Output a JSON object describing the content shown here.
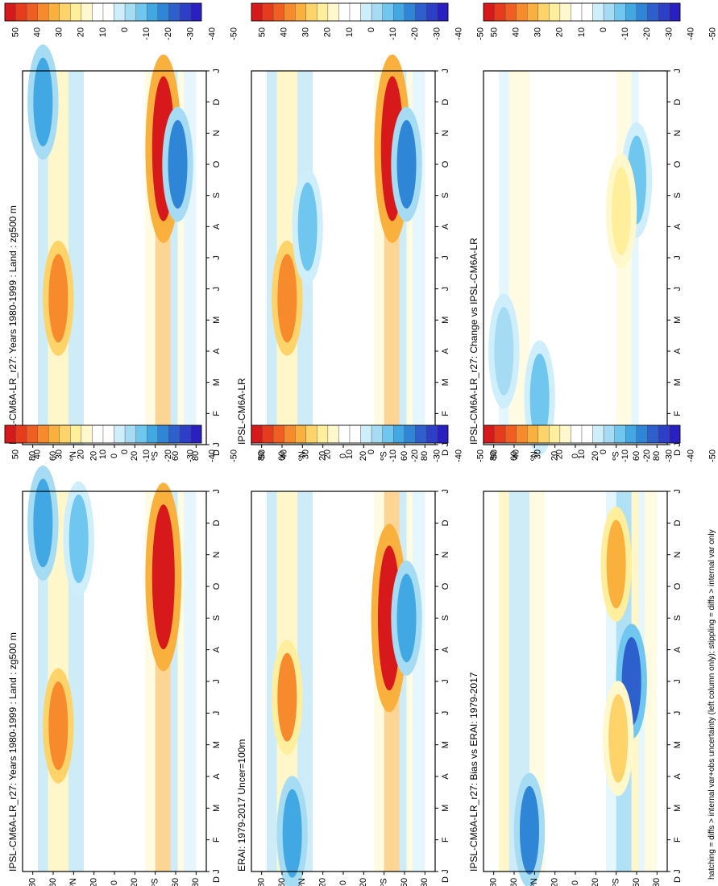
{
  "footnote": "hatching = diffs > internal var+obs uncertainty (left column only); stippling = diffs > internal var only",
  "colorbar": {
    "labels": [
      "50",
      "40",
      "30",
      "20",
      "10",
      "0",
      "-10",
      "-20",
      "-30",
      "-40",
      "-50"
    ],
    "colors": [
      "#d7191c",
      "#e63b1d",
      "#f05e22",
      "#f68a2c",
      "#fab03c",
      "#fdd36a",
      "#ffee9c",
      "#fff8cc",
      "#ffffff",
      "#ffffff",
      "#cfeefb",
      "#a6dcf3",
      "#6fc6ee",
      "#42a8e3",
      "#2f86d6",
      "#2d5fcd",
      "#2d3fc7",
      "#2a20c2"
    ]
  },
  "axis_labels": {
    "months": [
      "J",
      "F",
      "M",
      "A",
      "M",
      "J",
      "J",
      "A",
      "S",
      "O",
      "N",
      "D",
      "J"
    ],
    "lat": [
      "80",
      "60",
      "ºN",
      "20",
      "0",
      "20",
      "ºS",
      "60",
      "80"
    ],
    "corner": "D"
  },
  "chart_data": [
    {
      "type": "heatmap",
      "title": "IPSL-CM6A-LR_r27: Years 1980-1999 : Land : zg500 m",
      "xlabel": "",
      "ylabel": "",
      "x": [
        "J",
        "F",
        "M",
        "A",
        "M",
        "J",
        "J",
        "A",
        "S",
        "O",
        "N",
        "D",
        "J"
      ],
      "y": [
        "80N",
        "60N",
        "40N",
        "20N",
        "0",
        "20S",
        "40S",
        "60S",
        "80S"
      ],
      "zrange": [
        -50,
        50
      ],
      "features": [
        {
          "lat": 55,
          "month": 4.6,
          "value": 35
        },
        {
          "lat": -48,
          "month": 9.3,
          "value": 50
        },
        {
          "lat": 70,
          "month": 11,
          "value": -25
        },
        {
          "lat": 35,
          "month": 10.5,
          "value": -20
        }
      ]
    },
    {
      "type": "heatmap",
      "title": "IPSL-CM6A-LR_r27: Years 1980-1999 : Land : zg500 m",
      "xlabel": "",
      "ylabel": "",
      "x": [
        "J",
        "F",
        "M",
        "A",
        "M",
        "J",
        "J",
        "A",
        "S",
        "O",
        "N",
        "D",
        "J"
      ],
      "y": [
        "80N",
        "60N",
        "40N",
        "20N",
        "0",
        "20S",
        "40S",
        "60S",
        "80S"
      ],
      "zrange": [
        -50,
        50
      ],
      "features": [
        {
          "lat": 55,
          "month": 4.7,
          "value": 35
        },
        {
          "lat": -48,
          "month": 9.5,
          "value": 50
        },
        {
          "lat": -62,
          "month": 9,
          "value": -30
        },
        {
          "lat": 70,
          "month": 11,
          "value": -25
        }
      ]
    },
    {
      "type": "heatmap",
      "title": "ERAI: 1979-2017 Uncer=100m",
      "xlabel": "",
      "ylabel": "",
      "x": [
        "J",
        "F",
        "M",
        "A",
        "M",
        "J",
        "J",
        "A",
        "S",
        "O",
        "N",
        "D",
        "J"
      ],
      "y": [
        "80N",
        "60N",
        "40N",
        "20N",
        "0",
        "20S",
        "40S",
        "60S",
        "80S"
      ],
      "zrange": [
        -50,
        50
      ],
      "features": [
        {
          "lat": 55,
          "month": 5.5,
          "value": 30
        },
        {
          "lat": -45,
          "month": 8,
          "value": 50
        },
        {
          "lat": 50,
          "month": 1.2,
          "value": -25
        },
        {
          "lat": -62,
          "month": 8,
          "value": -25
        }
      ]
    },
    {
      "type": "heatmap",
      "title": "IPSL-CM6A-LR",
      "xlabel": "",
      "ylabel": "",
      "x": [
        "J",
        "F",
        "M",
        "A",
        "M",
        "J",
        "J",
        "A",
        "S",
        "O",
        "N",
        "D",
        "J"
      ],
      "y": [
        "80N",
        "60N",
        "40N",
        "20N",
        "0",
        "20S",
        "40S",
        "60S",
        "80S"
      ],
      "zrange": [
        -50,
        50
      ],
      "features": [
        {
          "lat": 55,
          "month": 4.7,
          "value": 35
        },
        {
          "lat": -48,
          "month": 9.5,
          "value": 50
        },
        {
          "lat": -62,
          "month": 9,
          "value": -30
        },
        {
          "lat": 35,
          "month": 7,
          "value": -20
        }
      ]
    },
    {
      "type": "heatmap",
      "title": "IPSL-CM6A-LR_r27: Bias vs ERAI: 1979-2017",
      "xlabel": "",
      "ylabel": "",
      "x": [
        "J",
        "F",
        "M",
        "A",
        "M",
        "J",
        "J",
        "A",
        "S",
        "O",
        "N",
        "D",
        "J"
      ],
      "y": [
        "80N",
        "60N",
        "40N",
        "20N",
        "0",
        "20S",
        "40S",
        "60S",
        "80S"
      ],
      "zrange": [
        -50,
        50
      ],
      "features": [
        {
          "lat": 45,
          "month": 1.3,
          "value": -30
        },
        {
          "lat": -55,
          "month": 6,
          "value": -40
        },
        {
          "lat": -40,
          "month": 9.7,
          "value": 25
        },
        {
          "lat": -42,
          "month": 4.2,
          "value": 20
        }
      ]
    },
    {
      "type": "heatmap",
      "title": "IPSL-CM6A-LR_r27: Change vs IPSL-CM6A-LR",
      "xlabel": "",
      "ylabel": "",
      "x": [
        "J",
        "F",
        "M",
        "A",
        "M",
        "J",
        "J",
        "A",
        "S",
        "O",
        "N",
        "D",
        "J"
      ],
      "y": [
        "80N",
        "60N",
        "40N",
        "20N",
        "0",
        "20S",
        "40S",
        "60S",
        "80S"
      ],
      "zrange": [
        -50,
        50
      ],
      "features": [
        {
          "lat": 35,
          "month": 1.5,
          "value": -20
        },
        {
          "lat": -60,
          "month": 8.5,
          "value": -20
        },
        {
          "lat": -45,
          "month": 7.5,
          "value": 15
        },
        {
          "lat": 70,
          "month": 3,
          "value": -15
        }
      ]
    }
  ]
}
